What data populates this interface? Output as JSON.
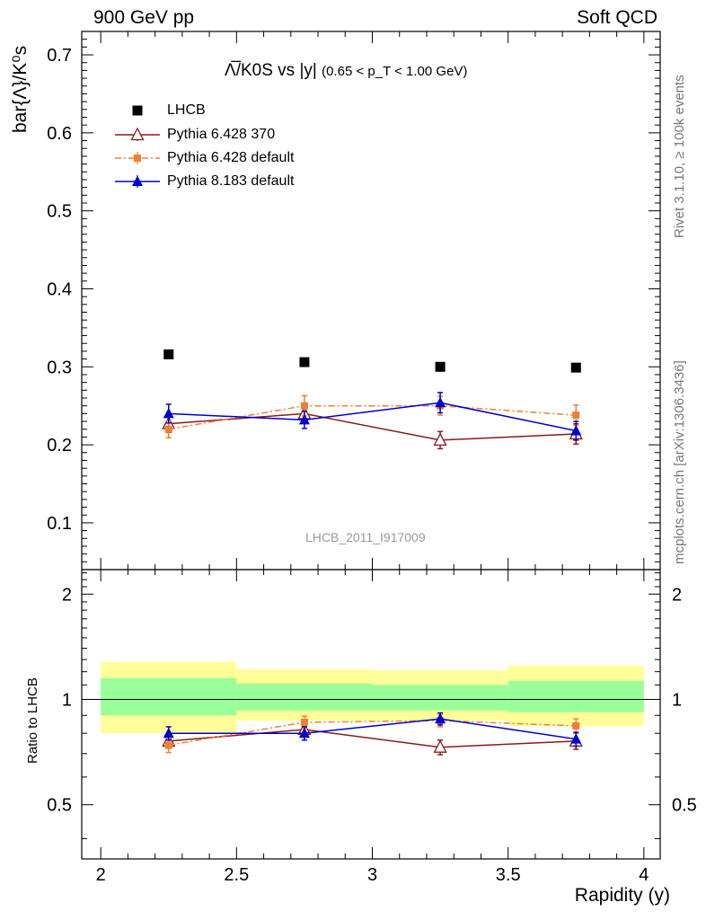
{
  "header": {
    "left": "900 GeV pp",
    "right": "Soft QCD"
  },
  "side": {
    "rivet": "Rivet 3.1.10, ≥ 100k events",
    "mcplots": "mcplots.cern.ch [arXiv:1306.3436]"
  },
  "title": {
    "main": "Λ̅/K0S vs |y|",
    "sub": "(0.65 < p_T < 1.00 GeV)"
  },
  "analysis_tag": "LHCB_2011_I917009",
  "chart_data": [
    {
      "type": "scatter",
      "panel": "main",
      "xlabel": "Rapidity (y)",
      "ylabel": "bar{Λ}/K⁰s",
      "xlim": [
        1.93,
        4.06
      ],
      "ylim": [
        0.04,
        0.73
      ],
      "yticks": [
        0.1,
        0.2,
        0.3,
        0.4,
        0.5,
        0.6,
        0.7
      ],
      "x": [
        2.25,
        2.75,
        3.25,
        3.75
      ],
      "bins": [
        [
          2.0,
          2.5
        ],
        [
          2.5,
          3.0
        ],
        [
          3.0,
          3.5
        ],
        [
          3.5,
          4.0
        ]
      ],
      "series": [
        {
          "name": "LHCB",
          "color": "#000000",
          "marker": "square",
          "line": "none",
          "values": [
            0.316,
            0.306,
            0.3,
            0.299
          ],
          "errors": [
            0,
            0,
            0,
            0
          ]
        },
        {
          "name": "Pythia 6.428 370",
          "color": "#8b1a1a",
          "marker": "open-triangle",
          "line": "solid",
          "values": [
            0.227,
            0.24,
            0.206,
            0.214
          ],
          "errors": [
            0.011,
            0.012,
            0.011,
            0.013
          ]
        },
        {
          "name": "Pythia 6.428 default",
          "color": "#f08030",
          "marker": "small-square",
          "line": "dashdot",
          "values": [
            0.22,
            0.25,
            0.25,
            0.238
          ],
          "errors": [
            0.011,
            0.013,
            0.012,
            0.013
          ]
        },
        {
          "name": "Pythia 8.183 default",
          "color": "#0000cc",
          "marker": "triangle",
          "line": "solid",
          "values": [
            0.24,
            0.232,
            0.254,
            0.218
          ],
          "errors": [
            0.012,
            0.011,
            0.013,
            0.012
          ]
        }
      ]
    },
    {
      "type": "scatter",
      "panel": "ratio",
      "ylabel": "Ratio to LHCB",
      "xlabel": "Rapidity (y)",
      "xlim": [
        1.93,
        4.06
      ],
      "ylim": [
        0.35,
        2.35
      ],
      "yscale": "log",
      "yticks": [
        0.5,
        1,
        2
      ],
      "xticks": [
        2,
        2.5,
        3,
        3.5,
        4
      ],
      "x": [
        2.25,
        2.75,
        3.25,
        3.75
      ],
      "bands": {
        "yellow": [
          [
            0.8,
            1.28
          ],
          [
            0.87,
            1.22
          ],
          [
            0.87,
            1.21
          ],
          [
            0.84,
            1.25
          ]
        ],
        "green": [
          [
            0.9,
            1.15
          ],
          [
            0.93,
            1.11
          ],
          [
            0.93,
            1.1
          ],
          [
            0.92,
            1.13
          ]
        ]
      },
      "series": [
        {
          "name": "Pythia 6.428 370",
          "color": "#8b1a1a",
          "values": [
            0.76,
            0.82,
            0.73,
            0.76
          ],
          "errors": [
            0.035,
            0.035,
            0.035,
            0.04
          ]
        },
        {
          "name": "Pythia 6.428 default",
          "color": "#f08030",
          "values": [
            0.74,
            0.86,
            0.87,
            0.84
          ],
          "errors": [
            0.035,
            0.035,
            0.035,
            0.04
          ]
        },
        {
          "name": "Pythia 8.183 default",
          "color": "#0000cc",
          "values": [
            0.8,
            0.8,
            0.88,
            0.77
          ],
          "errors": [
            0.035,
            0.035,
            0.035,
            0.035
          ]
        }
      ]
    }
  ]
}
